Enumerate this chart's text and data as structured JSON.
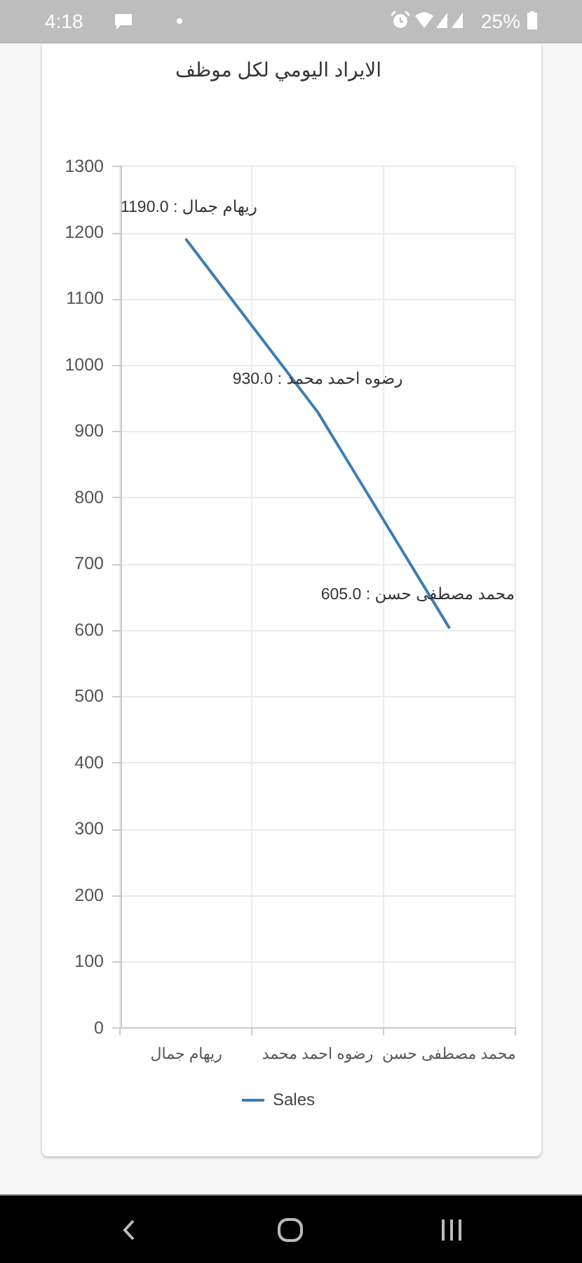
{
  "chart_data": {
    "type": "line",
    "title": "الايراد اليومي لكل موظف",
    "categories": [
      "ريهام جمال",
      "رضوه احمد محمد",
      "محمد مصطفى حسن"
    ],
    "series": [
      {
        "name": "Sales",
        "color": "#3e7db5",
        "values": [
          1190,
          930,
          605
        ],
        "value_labels": [
          "ريهام جمال : 1190.0",
          "رضوه احمد محمد : 930.0",
          "محمد مصطفى حسن : 605.0"
        ]
      }
    ],
    "ylim": [
      0,
      1300
    ],
    "yticks": [
      0,
      100,
      200,
      300,
      400,
      500,
      600,
      700,
      800,
      900,
      1000,
      1100,
      1200,
      1300
    ],
    "grid": true,
    "legend": "bottom",
    "annotations": [
      "4:18",
      "25%"
    ]
  }
}
